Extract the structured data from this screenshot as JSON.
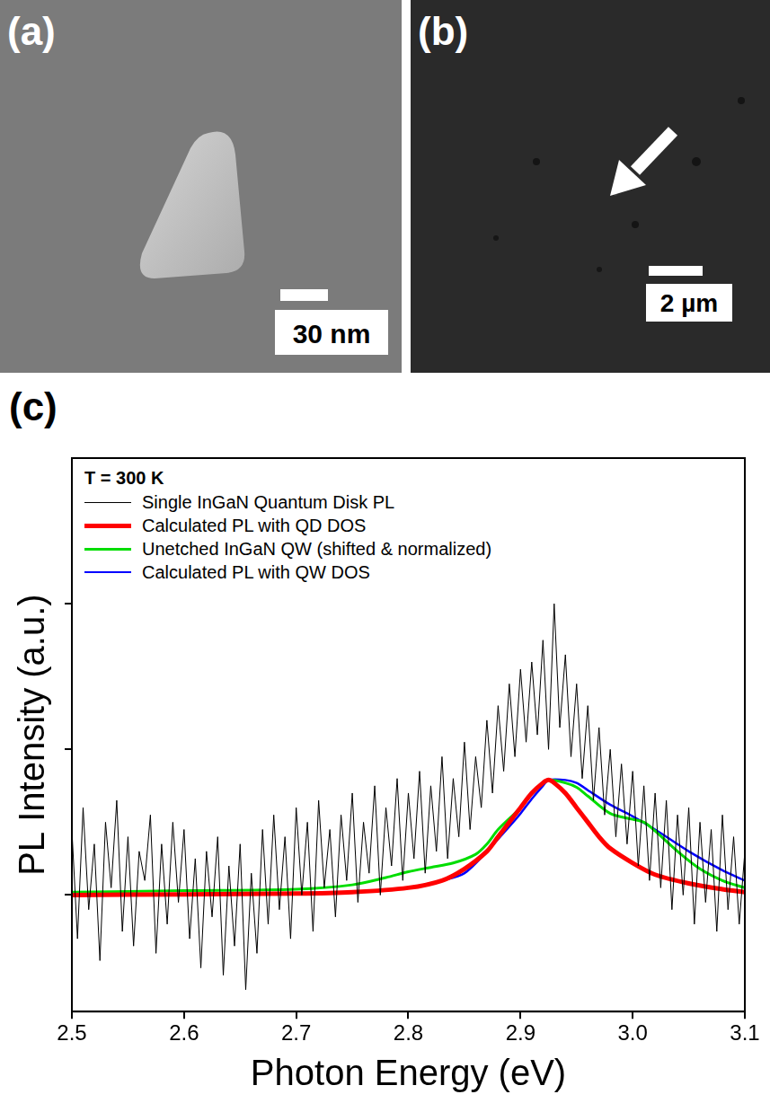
{
  "panels": [
    {
      "label": "(a)",
      "scale_bar": "30 nm"
    },
    {
      "label": "(b)",
      "scale_bar": "2 µm"
    },
    {
      "label": "(c)"
    }
  ],
  "chart_data": {
    "type": "line",
    "legend_title": "T = 300 K",
    "x_label": "Photon Energy (eV)",
    "y_label": "PL Intensity (a.u.)",
    "xlim": [
      2.5,
      3.1
    ],
    "xticks": [
      2.5,
      2.6,
      2.7,
      2.8,
      2.9,
      {
        "value": 3.0,
        "label": "3.0"
      },
      3.1
    ],
    "ylim": [
      -0.8,
      3.0
    ],
    "yticks": [
      0,
      1,
      2
    ],
    "tick_labels": "x",
    "grid": false,
    "legend": "upper left",
    "series": [
      {
        "name": "Single InGaN Quantum Disk PL",
        "color": "#000000",
        "x": [
          2.5,
          2.505,
          2.51,
          2.515,
          2.52,
          2.525,
          2.53,
          2.535,
          2.54,
          2.545,
          2.55,
          2.555,
          2.56,
          2.565,
          2.57,
          2.575,
          2.58,
          2.585,
          2.59,
          2.595,
          2.6,
          2.605,
          2.61,
          2.615,
          2.62,
          2.625,
          2.63,
          2.635,
          2.64,
          2.645,
          2.65,
          2.655,
          2.66,
          2.665,
          2.67,
          2.675,
          2.68,
          2.685,
          2.69,
          2.695,
          2.7,
          2.705,
          2.71,
          2.715,
          2.72,
          2.725,
          2.73,
          2.735,
          2.74,
          2.745,
          2.75,
          2.755,
          2.76,
          2.765,
          2.77,
          2.775,
          2.78,
          2.785,
          2.79,
          2.795,
          2.8,
          2.805,
          2.81,
          2.815,
          2.82,
          2.825,
          2.83,
          2.835,
          2.84,
          2.845,
          2.85,
          2.855,
          2.86,
          2.865,
          2.87,
          2.875,
          2.88,
          2.885,
          2.89,
          2.895,
          2.9,
          2.905,
          2.91,
          2.915,
          2.92,
          2.925,
          2.93,
          2.935,
          2.94,
          2.945,
          2.95,
          2.955,
          2.96,
          2.965,
          2.97,
          2.975,
          2.98,
          2.985,
          2.99,
          2.995,
          3.0,
          3.005,
          3.01,
          3.015,
          3.02,
          3.025,
          3.03,
          3.035,
          3.04,
          3.045,
          3.05,
          3.055,
          3.06,
          3.065,
          3.07,
          3.075,
          3.08,
          3.085,
          3.09,
          3.095,
          3.1
        ],
        "values": [
          0.45,
          -0.3,
          0.6,
          -0.1,
          0.35,
          -0.45,
          0.5,
          0.05,
          0.65,
          -0.25,
          0.4,
          -0.35,
          0.3,
          0.1,
          0.55,
          -0.4,
          0.35,
          -0.2,
          0.5,
          -0.05,
          0.45,
          -0.3,
          0.25,
          -0.5,
          0.3,
          -0.15,
          0.4,
          -0.55,
          0.2,
          -0.35,
          0.35,
          -0.65,
          0.15,
          -0.4,
          0.45,
          -0.2,
          0.55,
          -0.1,
          0.4,
          -0.3,
          0.6,
          0.0,
          0.5,
          -0.25,
          0.65,
          0.05,
          0.45,
          -0.15,
          0.55,
          0.1,
          0.7,
          -0.05,
          0.5,
          0.15,
          0.75,
          0.0,
          0.6,
          0.2,
          0.8,
          0.1,
          0.7,
          0.25,
          0.85,
          0.15,
          0.75,
          0.3,
          0.95,
          0.25,
          0.8,
          0.4,
          1.05,
          0.45,
          0.95,
          0.6,
          1.2,
          0.7,
          1.3,
          0.85,
          1.45,
          0.95,
          1.55,
          1.05,
          1.6,
          1.1,
          1.75,
          1.0,
          2.0,
          1.15,
          1.65,
          0.95,
          1.45,
          0.8,
          1.3,
          0.65,
          1.15,
          0.55,
          1.0,
          0.4,
          0.9,
          0.35,
          0.85,
          0.2,
          0.75,
          0.1,
          0.7,
          0.05,
          0.65,
          -0.1,
          0.55,
          0.0,
          0.6,
          -0.2,
          0.5,
          -0.05,
          0.45,
          -0.25,
          0.55,
          -0.1,
          0.4,
          -0.2,
          0.3
        ]
      },
      {
        "name": "Calculated PL with QD DOS",
        "color": "#ff0000",
        "x": [
          2.5,
          2.6,
          2.7,
          2.75,
          2.8,
          2.83,
          2.85,
          2.87,
          2.88,
          2.89,
          2.9,
          2.91,
          2.92,
          2.925,
          2.93,
          2.94,
          2.95,
          2.96,
          2.97,
          2.98,
          3.0,
          3.02,
          3.05,
          3.08,
          3.1
        ],
        "values": [
          0.0,
          0.005,
          0.01,
          0.02,
          0.05,
          0.1,
          0.18,
          0.3,
          0.4,
          0.5,
          0.6,
          0.7,
          0.77,
          0.79,
          0.77,
          0.7,
          0.6,
          0.5,
          0.4,
          0.32,
          0.22,
          0.14,
          0.08,
          0.04,
          0.02
        ]
      },
      {
        "name": "Unetched InGaN QW (shifted & normalized)",
        "color": "#00dd00",
        "x": [
          2.5,
          2.6,
          2.7,
          2.75,
          2.78,
          2.8,
          2.82,
          2.84,
          2.86,
          2.87,
          2.88,
          2.9,
          2.91,
          2.92,
          2.925,
          2.94,
          2.95,
          2.96,
          2.98,
          3.0,
          3.01,
          3.02,
          3.04,
          3.06,
          3.08,
          3.1
        ],
        "values": [
          0.02,
          0.03,
          0.04,
          0.07,
          0.12,
          0.16,
          0.19,
          0.22,
          0.28,
          0.35,
          0.45,
          0.6,
          0.7,
          0.77,
          0.79,
          0.77,
          0.74,
          0.68,
          0.56,
          0.52,
          0.5,
          0.44,
          0.3,
          0.18,
          0.1,
          0.05
        ]
      },
      {
        "name": "Calculated PL with QW DOS",
        "color": "#0000ff",
        "x": [
          2.57,
          2.65,
          2.7,
          2.75,
          2.8,
          2.83,
          2.85,
          2.87,
          2.89,
          2.9,
          2.91,
          2.92,
          2.925,
          2.94,
          2.95,
          2.96,
          2.98,
          3.0,
          3.02,
          3.05,
          3.08,
          3.1
        ],
        "values": [
          0.0,
          0.005,
          0.01,
          0.02,
          0.05,
          0.1,
          0.15,
          0.3,
          0.47,
          0.56,
          0.66,
          0.75,
          0.79,
          0.79,
          0.77,
          0.72,
          0.62,
          0.54,
          0.45,
          0.3,
          0.17,
          0.1
        ]
      }
    ]
  }
}
